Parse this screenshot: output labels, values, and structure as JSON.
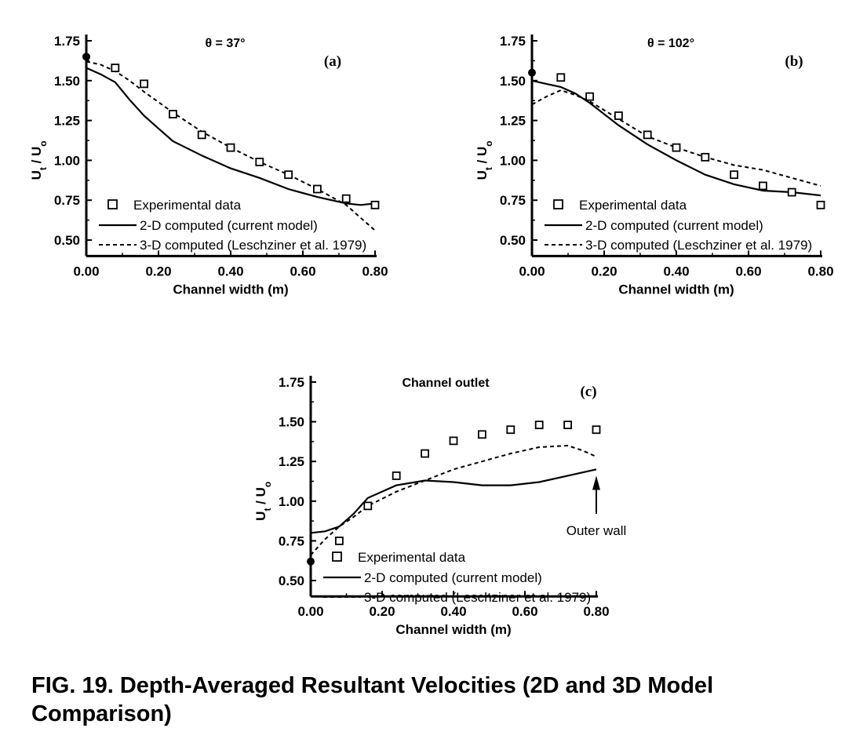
{
  "caption": "FIG. 19.   Depth-Averaged Resultant Velocities (2D and 3D Model Comparison)",
  "chart_data": [
    {
      "type": "line",
      "panel": "(a)",
      "title": "θ = 37°",
      "note": "",
      "xlabel": "Channel width (m)",
      "ylabel": "U_t / U_o",
      "xlim": [
        0,
        0.8
      ],
      "ylim": [
        0.4,
        1.75
      ],
      "xticks": [
        "0.00",
        "0.20",
        "0.40",
        "0.60",
        "0.80"
      ],
      "yticks": [
        "0.50",
        "0.75",
        "1.00",
        "1.25",
        "1.50",
        "1.75"
      ],
      "legend": [
        "Experimental data",
        "2-D computed (current model)",
        "3-D computed (Leschziner et al. 1979)"
      ],
      "experimental": {
        "x": [
          0.0,
          0.08,
          0.16,
          0.24,
          0.32,
          0.4,
          0.48,
          0.56,
          0.64,
          0.72,
          0.8
        ],
        "y": [
          1.65,
          1.58,
          1.48,
          1.29,
          1.16,
          1.08,
          0.99,
          0.91,
          0.82,
          0.76,
          0.72
        ]
      },
      "computed_2d": {
        "x": [
          0.0,
          0.04,
          0.08,
          0.12,
          0.16,
          0.2,
          0.24,
          0.32,
          0.4,
          0.48,
          0.56,
          0.64,
          0.72,
          0.76,
          0.8
        ],
        "y": [
          1.58,
          1.54,
          1.49,
          1.38,
          1.28,
          1.2,
          1.12,
          1.03,
          0.95,
          0.89,
          0.82,
          0.77,
          0.73,
          0.72,
          0.73
        ]
      },
      "computed_3d": {
        "x": [
          0.0,
          0.04,
          0.08,
          0.12,
          0.16,
          0.24,
          0.32,
          0.4,
          0.48,
          0.56,
          0.64,
          0.72,
          0.76,
          0.8
        ],
        "y": [
          1.62,
          1.6,
          1.56,
          1.5,
          1.43,
          1.3,
          1.18,
          1.08,
          0.99,
          0.91,
          0.82,
          0.72,
          0.64,
          0.56
        ]
      }
    },
    {
      "type": "line",
      "panel": "(b)",
      "title": "θ = 102°",
      "note": "",
      "xlabel": "Channel width (m)",
      "ylabel": "U_t / U_o",
      "xlim": [
        0,
        0.8
      ],
      "ylim": [
        0.4,
        1.75
      ],
      "xticks": [
        "0.00",
        "0.20",
        "0.40",
        "0.60",
        "0.80"
      ],
      "yticks": [
        "0.50",
        "0.75",
        "1.00",
        "1.25",
        "1.50",
        "1.75"
      ],
      "legend": [
        "Experimental data",
        "2-D computed (current model)",
        "3-D computed (Leschziner et al. 1979)"
      ],
      "experimental": {
        "x": [
          0.0,
          0.08,
          0.16,
          0.24,
          0.32,
          0.4,
          0.48,
          0.56,
          0.64,
          0.72,
          0.8
        ],
        "y": [
          1.55,
          1.52,
          1.4,
          1.28,
          1.16,
          1.08,
          1.02,
          0.91,
          0.84,
          0.8,
          0.72
        ]
      },
      "computed_2d": {
        "x": [
          0.0,
          0.04,
          0.08,
          0.12,
          0.16,
          0.24,
          0.32,
          0.4,
          0.48,
          0.56,
          0.64,
          0.72,
          0.8
        ],
        "y": [
          1.5,
          1.48,
          1.46,
          1.42,
          1.36,
          1.22,
          1.1,
          1.0,
          0.91,
          0.85,
          0.81,
          0.8,
          0.78
        ]
      },
      "computed_3d": {
        "x": [
          0.0,
          0.04,
          0.08,
          0.12,
          0.16,
          0.24,
          0.32,
          0.4,
          0.48,
          0.56,
          0.64,
          0.72,
          0.8
        ],
        "y": [
          1.35,
          1.4,
          1.44,
          1.41,
          1.37,
          1.26,
          1.15,
          1.08,
          1.02,
          0.97,
          0.94,
          0.89,
          0.84
        ]
      }
    },
    {
      "type": "line",
      "panel": "(c)",
      "title": "Channel outlet",
      "note": "Outer wall",
      "xlabel": "Channel width (m)",
      "ylabel": "U_t / U_o",
      "xlim": [
        0,
        0.8
      ],
      "ylim": [
        0.4,
        1.75
      ],
      "xticks": [
        "0.00",
        "0.20",
        "0.40",
        "0.60",
        "0.80"
      ],
      "yticks": [
        "0.50",
        "0.75",
        "1.00",
        "1.25",
        "1.50",
        "1.75"
      ],
      "legend": [
        "Experimental data",
        "2-D computed (current model)",
        "3-D computed (Leschziner et al. 1979)"
      ],
      "experimental": {
        "x": [
          0.0,
          0.08,
          0.16,
          0.24,
          0.32,
          0.4,
          0.48,
          0.56,
          0.64,
          0.72,
          0.8
        ],
        "y": [
          0.62,
          0.75,
          0.97,
          1.16,
          1.3,
          1.38,
          1.42,
          1.45,
          1.48,
          1.48,
          1.45
        ]
      },
      "computed_2d": {
        "x": [
          0.0,
          0.04,
          0.08,
          0.12,
          0.16,
          0.24,
          0.32,
          0.4,
          0.48,
          0.56,
          0.64,
          0.72,
          0.8
        ],
        "y": [
          0.8,
          0.81,
          0.84,
          0.92,
          1.02,
          1.1,
          1.13,
          1.12,
          1.1,
          1.1,
          1.12,
          1.16,
          1.2
        ]
      },
      "computed_3d": {
        "x": [
          0.0,
          0.04,
          0.08,
          0.12,
          0.16,
          0.24,
          0.32,
          0.4,
          0.48,
          0.56,
          0.64,
          0.72,
          0.76,
          0.8
        ],
        "y": [
          0.66,
          0.76,
          0.84,
          0.9,
          0.97,
          1.06,
          1.13,
          1.2,
          1.25,
          1.3,
          1.34,
          1.35,
          1.32,
          1.28
        ]
      }
    }
  ]
}
